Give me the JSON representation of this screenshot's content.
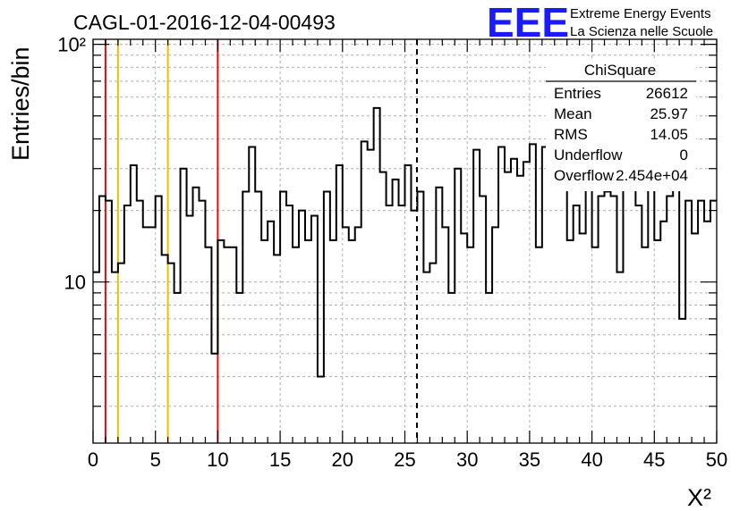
{
  "title": "CAGL-01-2016-12-04-00493",
  "logo": {
    "mark": "EEE",
    "line1": "Extreme Energy Events",
    "line2": "La Scienza nelle Scuole"
  },
  "stats": {
    "title": "ChiSquare",
    "rows": [
      {
        "label": "Entries",
        "value": "26612"
      },
      {
        "label": "Mean",
        "value": "25.97"
      },
      {
        "label": "RMS",
        "value": "14.05"
      },
      {
        "label": "Underflow",
        "value": "0"
      },
      {
        "label": "Overflow",
        "value": "2.454e+04"
      }
    ]
  },
  "colors": {
    "red_line": "#e01010",
    "yellow_line": "#f0c000",
    "grid": "#b0b0b0",
    "logo_blue": "#1a1aff"
  },
  "chart_data": {
    "type": "histogram",
    "xlabel": "X²",
    "ylabel": "Entries/bin",
    "xlim": [
      0,
      50
    ],
    "ylim": [
      2.1,
      105
    ],
    "yscale": "log",
    "grid": true,
    "bin_width": 0.5,
    "x_ticks": [
      0,
      5,
      10,
      15,
      20,
      25,
      30,
      35,
      40,
      45,
      50
    ],
    "y_tick_labels": [
      {
        "value": 10,
        "label": "10"
      },
      {
        "value": 100,
        "label": "10²"
      }
    ],
    "vertical_lines": [
      {
        "x": 1,
        "color": "red"
      },
      {
        "x": 2,
        "color": "yellow"
      },
      {
        "x": 6,
        "color": "yellow"
      },
      {
        "x": 10,
        "color": "red"
      },
      {
        "x": 25.97,
        "color": "black",
        "style": "dashed"
      }
    ],
    "values": [
      11,
      23,
      22,
      11,
      12,
      21,
      31,
      22,
      17,
      17,
      23,
      13,
      12,
      9,
      30,
      19,
      25,
      22,
      14,
      5,
      15,
      14,
      14,
      9,
      24,
      37,
      24,
      15,
      18,
      13,
      24,
      21,
      14,
      20,
      15,
      19,
      4,
      24,
      15,
      31,
      17,
      15,
      17,
      39,
      36,
      54,
      29,
      21,
      27,
      21,
      31,
      20,
      24,
      11,
      12,
      25,
      17,
      9,
      30,
      16,
      14,
      36,
      23,
      9,
      17,
      37,
      29,
      33,
      28,
      32,
      38,
      14,
      37,
      28,
      31,
      31,
      15,
      21,
      16,
      25,
      14,
      23,
      24,
      23,
      11,
      25,
      28,
      21,
      14,
      34,
      15,
      18,
      23,
      28,
      7,
      22,
      16,
      22,
      18,
      22
    ]
  }
}
